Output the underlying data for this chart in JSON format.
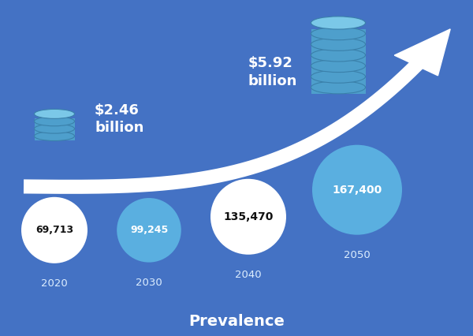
{
  "background_color": "#4472c4",
  "years": [
    2020,
    2030,
    2040,
    2050
  ],
  "values": [
    69713,
    99245,
    135470,
    167400
  ],
  "circle_colors": [
    "#ffffff",
    "#5aafe0",
    "#ffffff",
    "#5aafe0"
  ],
  "circle_text_colors": [
    "#111111",
    "#ffffff",
    "#111111",
    "#ffffff"
  ],
  "year_label_color": "#ddeeff",
  "cost_2020_text": "$2.46\nbillion",
  "cost_2050_text": "$5.92\nbillion",
  "xlabel": "Prevalence",
  "xlabel_color": "#ffffff",
  "xlabel_fontsize": 14,
  "arrow_color": "#ffffff",
  "db_color_top": "#7bc8e8",
  "db_color_body": "#4e9fcc",
  "db_color_rim": "#3a80aa"
}
